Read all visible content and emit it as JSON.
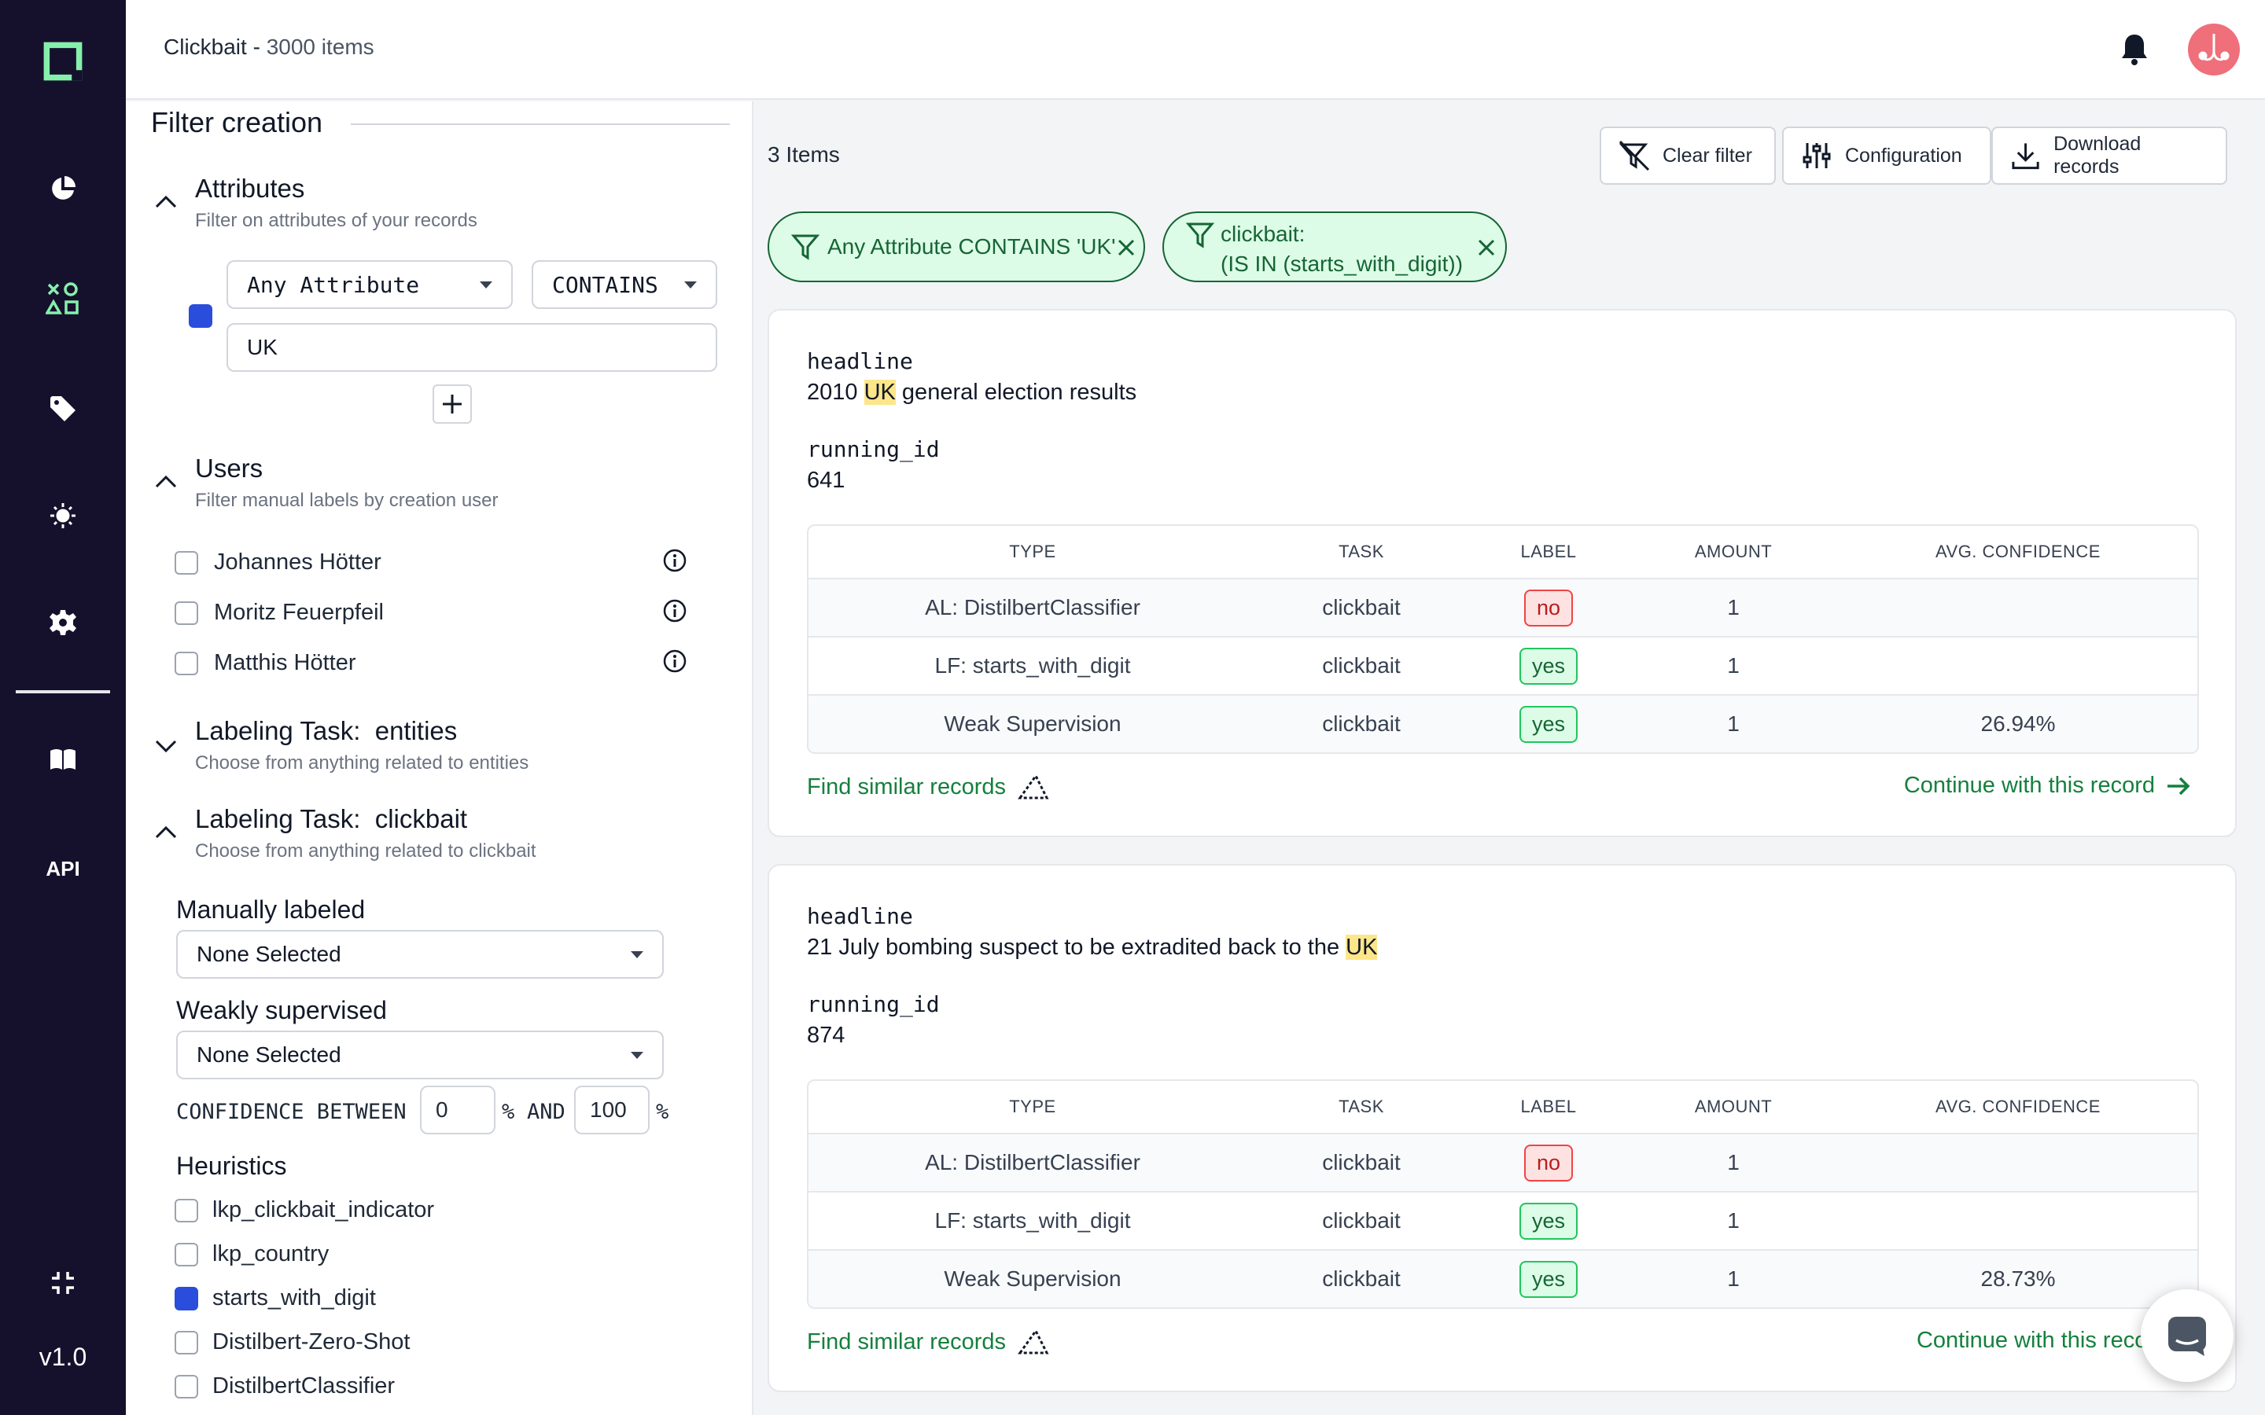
{
  "header": {
    "title": "Clickbait",
    "separator": " - ",
    "count": "3000 items"
  },
  "nav": {
    "api_label": "API",
    "version": "v1.0"
  },
  "filter_panel": {
    "title": "Filter creation",
    "attributes": {
      "title": "Attributes",
      "subtitle": "Filter on attributes of your records",
      "attribute_select": "Any Attribute",
      "operator_select": "CONTAINS",
      "value": "UK"
    },
    "users": {
      "title": "Users",
      "subtitle": "Filter manual labels by creation user",
      "items": [
        {
          "name": "Johannes Hötter"
        },
        {
          "name": "Moritz Feuerpfeil"
        },
        {
          "name": "Matthis Hötter"
        }
      ]
    },
    "task_entities": {
      "title": "Labeling Task:  entities",
      "subtitle": "Choose from anything related to entities"
    },
    "task_clickbait": {
      "title": "Labeling Task:  clickbait",
      "subtitle": "Choose from anything related to clickbait",
      "manually_labeled": {
        "label": "Manually labeled",
        "value": "None Selected"
      },
      "weakly_supervised": {
        "label": "Weakly supervised",
        "value": "None Selected"
      },
      "confidence": {
        "prefix": "CONFIDENCE BETWEEN",
        "min": "0",
        "pct1": "%",
        "and": "AND",
        "max": "100",
        "pct2": "%"
      },
      "heuristics": {
        "label": "Heuristics",
        "items": [
          {
            "name": "lkp_clickbait_indicator",
            "checked": false
          },
          {
            "name": "lkp_country",
            "checked": false
          },
          {
            "name": "starts_with_digit",
            "checked": true
          },
          {
            "name": "Distilbert-Zero-Shot",
            "checked": false
          },
          {
            "name": "DistilbertClassifier",
            "checked": false
          }
        ]
      }
    }
  },
  "main": {
    "items_count": "3 Items",
    "buttons": {
      "clear": "Clear filter",
      "configuration": "Configuration",
      "download": "Download records"
    },
    "chips": [
      {
        "text": "Any Attribute CONTAINS 'UK'"
      },
      {
        "line1": "clickbait:",
        "line2": "(IS IN (starts_with_digit))"
      }
    ],
    "table_headers": {
      "type": "TYPE",
      "task": "TASK",
      "label": "LABEL",
      "amount": "AMOUNT",
      "confidence": "AVG. CONFIDENCE"
    },
    "records": [
      {
        "field1_name": "headline",
        "headline_before": "2010 ",
        "headline_hl": "UK",
        "headline_after": " general election results",
        "field2_name": "running_id",
        "running_id": "641",
        "rows": [
          {
            "type": "AL: DistilbertClassifier",
            "task": "clickbait",
            "label": "no",
            "amount": "1",
            "confidence": ""
          },
          {
            "type": "LF: starts_with_digit",
            "task": "clickbait",
            "label": "yes",
            "amount": "1",
            "confidence": ""
          },
          {
            "type": "Weak Supervision",
            "task": "clickbait",
            "label": "yes",
            "amount": "1",
            "confidence": "26.94%"
          }
        ],
        "find_similar": "Find similar records",
        "continue": "Continue with this record"
      },
      {
        "field1_name": "headline",
        "headline_before": "21 July bombing suspect to be extradited back to the ",
        "headline_hl": "UK",
        "headline_after": "",
        "field2_name": "running_id",
        "running_id": "874",
        "rows": [
          {
            "type": "AL: DistilbertClassifier",
            "task": "clickbait",
            "label": "no",
            "amount": "1",
            "confidence": ""
          },
          {
            "type": "LF: starts_with_digit",
            "task": "clickbait",
            "label": "yes",
            "amount": "1",
            "confidence": ""
          },
          {
            "type": "Weak Supervision",
            "task": "clickbait",
            "label": "yes",
            "amount": "1",
            "confidence": "28.73%"
          }
        ],
        "find_similar": "Find similar records",
        "continue": "Continue with this recor"
      }
    ]
  },
  "colors": {
    "nav_bg": "#15112d",
    "accent_green": "#86efac",
    "brand_blue": "#2b4ddb",
    "chip_bg": "#dcfce7"
  },
  "icons": [
    "logo-icon",
    "pie-chart-icon",
    "shapes-icon",
    "tag-icon",
    "lightbulb-icon",
    "gear-icon",
    "book-icon",
    "collapse-icon",
    "bell-icon",
    "avatar-icon",
    "filter-off-icon",
    "sliders-icon",
    "download-icon",
    "filter-icon",
    "close-icon",
    "chevron-up-icon",
    "chevron-down-icon",
    "plus-icon",
    "info-icon",
    "triangle-ruler-icon",
    "arrow-right-icon",
    "chat-icon"
  ]
}
